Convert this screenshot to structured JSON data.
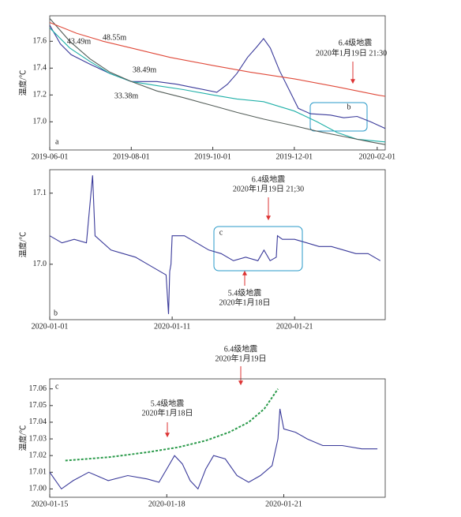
{
  "chart_data": [
    {
      "type": "line",
      "y_label": "温度/℃",
      "xlim": [
        0,
        251
      ],
      "xticks": [
        {
          "value": 0,
          "label": "2019-06-01"
        },
        {
          "value": 61,
          "label": "2019-08-01"
        },
        {
          "value": 122,
          "label": "2019-10-01"
        },
        {
          "value": 183,
          "label": "2019-12-01"
        },
        {
          "value": 245,
          "label": "2020-02-01"
        }
      ],
      "ylim": [
        16.79,
        17.79
      ],
      "yticks": [
        {
          "value": 17.0,
          "label": "17.0"
        },
        17.2,
        17.4,
        17.6
      ],
      "series": [
        {
          "name": "33.38m",
          "color": "#3a3a9a",
          "x": [
            0,
            8,
            16,
            30,
            45,
            61,
            80,
            95,
            110,
            125,
            133,
            140,
            148,
            155,
            160,
            165,
            172,
            180,
            186,
            195,
            210,
            220,
            230,
            240,
            251
          ],
          "values": [
            17.72,
            17.58,
            17.5,
            17.43,
            17.36,
            17.3,
            17.3,
            17.28,
            17.25,
            17.22,
            17.28,
            17.36,
            17.48,
            17.56,
            17.62,
            17.55,
            17.38,
            17.22,
            17.1,
            17.06,
            17.05,
            17.03,
            17.04,
            17.0,
            16.95
          ]
        },
        {
          "name": "38.49m",
          "color": "#20b0a8",
          "x": [
            0,
            15,
            30,
            45,
            61,
            80,
            100,
            122,
            140,
            160,
            183,
            200,
            215,
            230,
            251
          ],
          "values": [
            17.7,
            17.55,
            17.45,
            17.36,
            17.3,
            17.27,
            17.24,
            17.2,
            17.17,
            17.15,
            17.08,
            17.0,
            16.92,
            16.87,
            16.85
          ]
        },
        {
          "name": "43.49m",
          "color": "#555f5a",
          "x": [
            0,
            15,
            30,
            45,
            61,
            80,
            100,
            122,
            140,
            160,
            183,
            200,
            220,
            240,
            251
          ],
          "values": [
            17.77,
            17.6,
            17.47,
            17.37,
            17.3,
            17.23,
            17.18,
            17.12,
            17.07,
            17.02,
            16.97,
            16.93,
            16.89,
            16.85,
            16.83
          ]
        },
        {
          "name": "48.55m",
          "color": "#e04a3a",
          "x": [
            0,
            20,
            40,
            61,
            90,
            122,
            150,
            183,
            215,
            245,
            251
          ],
          "values": [
            17.74,
            17.66,
            17.6,
            17.55,
            17.48,
            17.42,
            17.37,
            17.32,
            17.26,
            17.2,
            17.19
          ]
        }
      ],
      "annotations": [
        "6.4级地震",
        "2020年1月19日 21:30",
        "b",
        "a"
      ]
    },
    {
      "type": "line",
      "y_label": "温度/℃",
      "xlim": [
        0,
        27.4
      ],
      "xticks": [
        {
          "value": 0,
          "label": "2020-01-01"
        },
        {
          "value": 10,
          "label": "2020-01-11"
        },
        {
          "value": 20,
          "label": "2020-01-21"
        }
      ],
      "ylim": [
        16.922,
        17.133
      ],
      "yticks": [
        {
          "value": 17.0,
          "label": "17.0"
        },
        17.1
      ],
      "series": [
        {
          "color": "#3a3a9a",
          "x": [
            0,
            1,
            2,
            3,
            3.5,
            3.7,
            5,
            6,
            7,
            8,
            9,
            9.5,
            9.7,
            9.8,
            9.9,
            10,
            11,
            12,
            13,
            14,
            15,
            16,
            17,
            17.5,
            18,
            18.5,
            18.6,
            19,
            20,
            21,
            22,
            23,
            24,
            25,
            26,
            27
          ],
          "values": [
            17.04,
            17.03,
            17.035,
            17.03,
            17.125,
            17.04,
            17.02,
            17.015,
            17.01,
            17.0,
            16.99,
            16.985,
            16.93,
            16.99,
            17.0,
            17.04,
            17.04,
            17.03,
            17.02,
            17.015,
            17.005,
            17.01,
            17.005,
            17.02,
            17.005,
            17.01,
            17.04,
            17.035,
            17.035,
            17.03,
            17.025,
            17.025,
            17.02,
            17.015,
            17.015,
            17.005
          ]
        }
      ],
      "annotations": [
        "6.4级地震",
        "2020年1月19日 21;30",
        "5.4级地震",
        "2020年1月18日",
        "c",
        "b"
      ]
    },
    {
      "type": "line",
      "y_label": "温度/℃",
      "xlim": [
        0,
        8.6
      ],
      "xticks": [
        {
          "value": 0,
          "label": "2020-01-15"
        },
        {
          "value": 3,
          "label": "2020-01-18"
        },
        {
          "value": 6,
          "label": "2020-01-21"
        }
      ],
      "ylim": [
        16.995,
        17.066
      ],
      "yticks": [
        {
          "value": 17.0,
          "label": "17.00"
        },
        17.01,
        17.02,
        17.03,
        17.04,
        17.05,
        17.06
      ],
      "series": [
        {
          "color": "#3a3a9a",
          "x": [
            0,
            0.3,
            0.6,
            1,
            1.5,
            2,
            2.5,
            2.8,
            3,
            3.2,
            3.4,
            3.6,
            3.8,
            4.0,
            4.2,
            4.5,
            4.8,
            5.1,
            5.4,
            5.7,
            5.85,
            5.9,
            6.0,
            6.3,
            6.6,
            7,
            7.5,
            8,
            8.4
          ],
          "values": [
            17.01,
            17.0,
            17.005,
            17.01,
            17.005,
            17.008,
            17.006,
            17.004,
            17.012,
            17.02,
            17.015,
            17.005,
            17.0,
            17.012,
            17.02,
            17.018,
            17.008,
            17.004,
            17.008,
            17.014,
            17.03,
            17.048,
            17.036,
            17.034,
            17.03,
            17.026,
            17.026,
            17.024,
            17.024
          ]
        },
        {
          "color": "#2a9a4a",
          "dashed": true,
          "x": [
            0.4,
            1.5,
            2.5,
            3.3,
            4.0,
            4.6,
            5.1,
            5.5,
            5.85
          ],
          "values": [
            17.017,
            17.019,
            17.022,
            17.025,
            17.029,
            17.034,
            17.04,
            17.048,
            17.06
          ]
        }
      ],
      "annotations": [
        "5.4级地震",
        "2020年1月18日",
        "6.4级地震",
        "2020年1月19日",
        "c"
      ]
    }
  ]
}
